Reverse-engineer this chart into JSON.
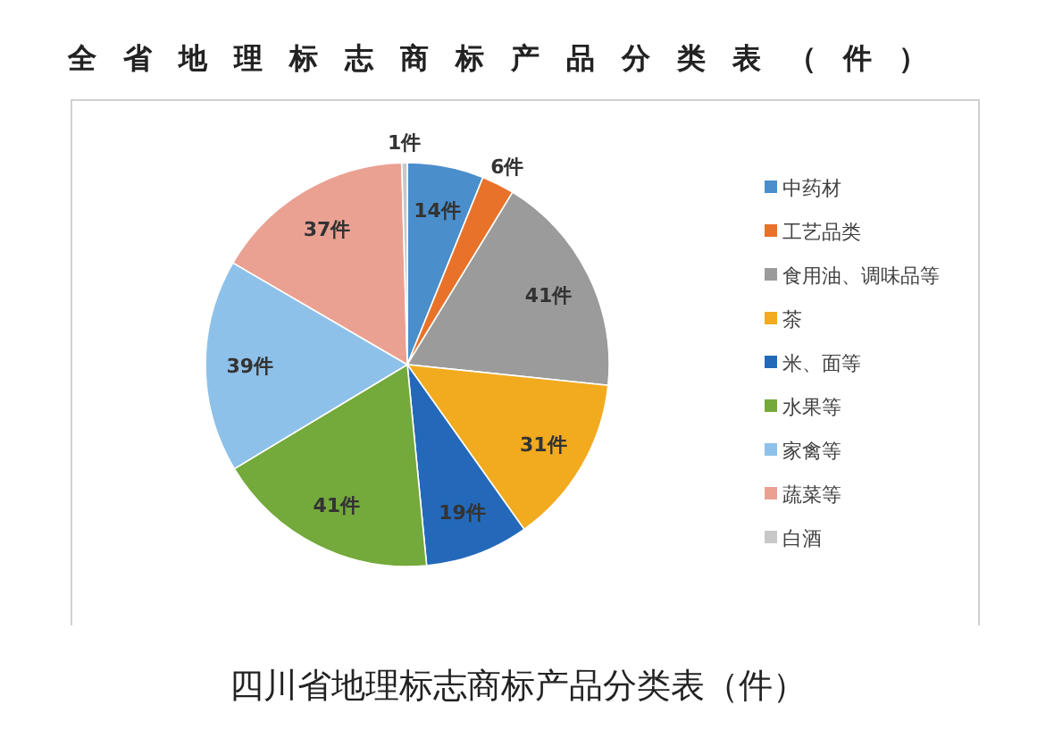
{
  "chart_data": {
    "type": "pie",
    "title": "全省地理标志商标产品分类表（件）",
    "categories": [
      "中药材",
      "工艺品类",
      "食用油、调味品等",
      "茶",
      "米、面等",
      "水果等",
      "家禽等",
      "蔬菜等",
      "白酒"
    ],
    "values": [
      14,
      6,
      41,
      31,
      19,
      41,
      39,
      37,
      1
    ],
    "colors": [
      "#4a8fcb",
      "#e8722a",
      "#9b9b9b",
      "#f2aa1e",
      "#2469b9",
      "#74a93b",
      "#8ec1e9",
      "#eaa192",
      "#c8c8c8"
    ],
    "value_labels": [
      "14件",
      "6件",
      "41件",
      "31件",
      "19件",
      "41件",
      "39件",
      "37件",
      "1件"
    ],
    "legend": "right",
    "annotations": [
      "四川省地理标志商标产品分类表（件）"
    ]
  }
}
